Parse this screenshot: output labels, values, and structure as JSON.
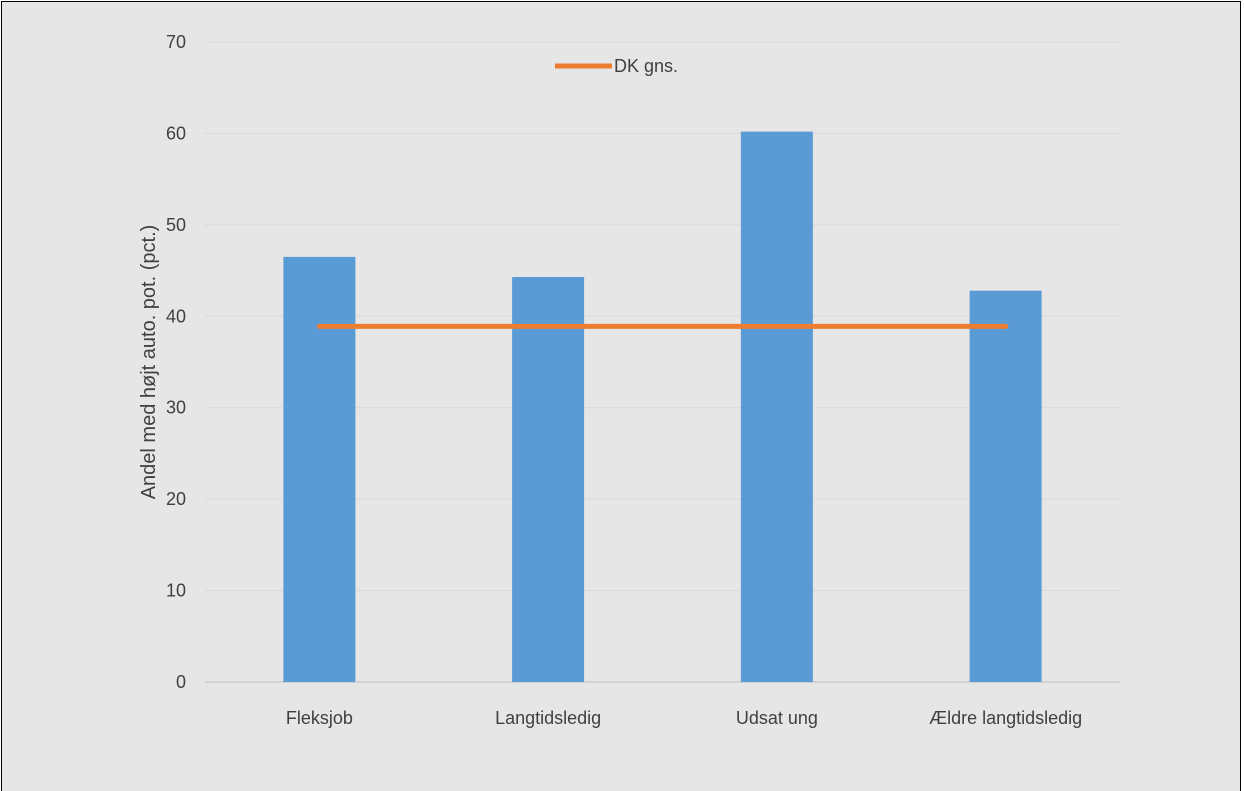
{
  "chart_data": {
    "type": "bar",
    "title": "",
    "xlabel": "",
    "ylabel": "Andel med højt auto. pot. (pct.)",
    "categories": [
      "Fleksjob",
      "Langtidsledig",
      "Udsat ung",
      "Ældre langtidsledig"
    ],
    "series": [
      {
        "values": [
          46.5,
          44.3,
          60.2,
          42.8
        ],
        "color": "#5b9bd5"
      }
    ],
    "reference_line": {
      "name": "DK gns.",
      "value": 38.9,
      "color": "#ed7d31"
    },
    "ylim": [
      0,
      70
    ],
    "yticks": [
      0,
      10,
      20,
      30,
      40,
      50,
      60,
      70
    ],
    "grid": true,
    "legend_position": "top"
  }
}
